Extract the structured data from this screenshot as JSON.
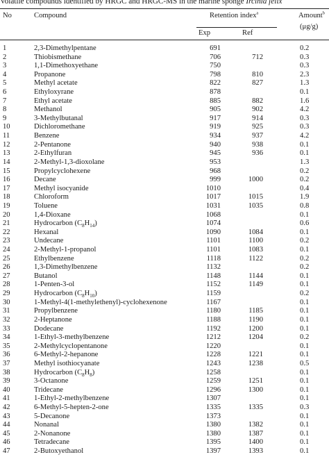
{
  "caption": {
    "text": "Volatile compounds identified by HRGC and HRGC-MS in the marine sponge ",
    "species": "Ircinia felix"
  },
  "headers": {
    "no": "No",
    "compound": "Compound",
    "retention_index": "Retention index",
    "retention_note": "a",
    "exp": "Exp",
    "ref": "Ref",
    "amount": "Amount",
    "amount_note": "b",
    "amount_unit": "(μg/g)"
  },
  "rows": [
    {
      "no": "1",
      "compound": "2,3-Dimethylpentane",
      "exp": "691",
      "ref": "",
      "amount": "0.2"
    },
    {
      "no": "2",
      "compound": "Thiobismethane",
      "exp": "706",
      "ref": "712",
      "amount": "0.3"
    },
    {
      "no": "3",
      "compound": "1,1-Dimethoxyethane",
      "exp": "750",
      "ref": "",
      "amount": "0.3"
    },
    {
      "no": "4",
      "compound": "Propanone",
      "exp": "798",
      "ref": "810",
      "amount": "2.3"
    },
    {
      "no": "5",
      "compound": "Methyl acetate",
      "exp": "822",
      "ref": "827",
      "amount": "1.3"
    },
    {
      "no": "6",
      "compound": "Ethyloxyrane",
      "exp": "878",
      "ref": "",
      "amount": "0.1"
    },
    {
      "no": "7",
      "compound": "Ethyl acetate",
      "exp": "885",
      "ref": "882",
      "amount": "1.6"
    },
    {
      "no": "8",
      "compound": "Methanol",
      "exp": "905",
      "ref": "902",
      "amount": "4.2"
    },
    {
      "no": "9",
      "compound": "3-Methylbutanal",
      "exp": "917",
      "ref": "914",
      "amount": "0.3"
    },
    {
      "no": "10",
      "compound": "Dichloromethane",
      "exp": "919",
      "ref": "925",
      "amount": "0.3"
    },
    {
      "no": "11",
      "compound": "Benzene",
      "exp": "934",
      "ref": "937",
      "amount": "4.2"
    },
    {
      "no": "12",
      "compound": "2-Pentanone",
      "exp": "940",
      "ref": "938",
      "amount": "0.1"
    },
    {
      "no": "13",
      "compound": "2-Ethylfuran",
      "exp": "945",
      "ref": "936",
      "amount": "0.1"
    },
    {
      "no": "14",
      "compound": "2-Methyl-1,3-dioxolane",
      "exp": "953",
      "ref": "",
      "amount": "1.3"
    },
    {
      "no": "15",
      "compound": "Propylcyclohexene",
      "exp": "968",
      "ref": "",
      "amount": "0.2"
    },
    {
      "no": "16",
      "compound": "Decane",
      "exp": "999",
      "ref": "1000",
      "amount": "0.2"
    },
    {
      "no": "17",
      "compound": "Methyl isocyanide",
      "exp": "1010",
      "ref": "",
      "amount": "0.4"
    },
    {
      "no": "18",
      "compound": "Chloroform",
      "exp": "1017",
      "ref": "1015",
      "amount": "1.9"
    },
    {
      "no": "19",
      "compound": "Toluene",
      "exp": "1031",
      "ref": "1035",
      "amount": "0.8"
    },
    {
      "no": "20",
      "compound": "1,4-Dioxane",
      "exp": "1068",
      "ref": "",
      "amount": "0.1"
    },
    {
      "no": "21",
      "compound": "Hydrocarbon (C",
      "sub": "8",
      "compound_tail": "H",
      "sub2": "14",
      "compound_end": ")",
      "exp": "1074",
      "ref": "",
      "amount": "0.6"
    },
    {
      "no": "22",
      "compound": "Hexanal",
      "exp": "1090",
      "ref": "1084",
      "amount": "0.1"
    },
    {
      "no": "23",
      "compound": "Undecane",
      "exp": "1101",
      "ref": "1100",
      "amount": "0.2"
    },
    {
      "no": "24",
      "compound": "2-Methyl-1-propanol",
      "exp": "1101",
      "ref": "1083",
      "amount": "0.1"
    },
    {
      "no": "25",
      "compound": "Ethylbenzene",
      "exp": "1118",
      "ref": "1122",
      "amount": "0.2"
    },
    {
      "no": "26",
      "compound": "1,3-Dimethylbenzene",
      "exp": "1132",
      "ref": "",
      "amount": "0.2"
    },
    {
      "no": "27",
      "compound": "Butanol",
      "exp": "1148",
      "ref": "1144",
      "amount": "0.1"
    },
    {
      "no": "28",
      "compound": "1-Penten-3-ol",
      "exp": "1152",
      "ref": "1149",
      "amount": "0.1"
    },
    {
      "no": "29",
      "compound": "Hydrocarbon (C",
      "sub": "8",
      "compound_tail": "H",
      "sub2": "10",
      "compound_end": ")",
      "exp": "1159",
      "ref": "",
      "amount": "0.2"
    },
    {
      "no": "30",
      "compound": "1-Methyl-4(1-methylethenyl)-cyclohexenone",
      "exp": "1167",
      "ref": "",
      "amount": "0.1"
    },
    {
      "no": "31",
      "compound": "Propylbenzene",
      "exp": "1180",
      "ref": "1185",
      "amount": "0.1"
    },
    {
      "no": "32",
      "compound": "2-Heptanone",
      "exp": "1188",
      "ref": "1190",
      "amount": "0.1"
    },
    {
      "no": "33",
      "compound": "Dodecane",
      "exp": "1192",
      "ref": "1200",
      "amount": "0.1"
    },
    {
      "no": "34",
      "compound": "1-Ethyl-3-methylbenzene",
      "exp": "1212",
      "ref": "1204",
      "amount": "0.2"
    },
    {
      "no": "35",
      "compound": "2-Methylcyclopentanone",
      "exp": "1220",
      "ref": "",
      "amount": "0.1"
    },
    {
      "no": "36",
      "compound": "6-Methyl-2-hepanone",
      "exp": "1228",
      "ref": "1221",
      "amount": "0.1"
    },
    {
      "no": "37",
      "compound": "Methyl isothiocyanate",
      "exp": "1243",
      "ref": "1238",
      "amount": "0.5"
    },
    {
      "no": "38",
      "compound": "Hydrocarbon (C",
      "sub": "8",
      "compound_tail": "H",
      "sub2": "8",
      "compound_end": ")",
      "exp": "1258",
      "ref": "",
      "amount": "0.1"
    },
    {
      "no": "39",
      "compound": "3-Octanone",
      "exp": "1259",
      "ref": "1251",
      "amount": "0.1"
    },
    {
      "no": "40",
      "compound": "Tridecane",
      "exp": "1296",
      "ref": "1300",
      "amount": "0.1"
    },
    {
      "no": "41",
      "compound": "1-Ethyl-2-methylbenzene",
      "exp": "1307",
      "ref": "",
      "amount": "0.1"
    },
    {
      "no": "42",
      "compound": "6-Methyl-5-hepten-2-one",
      "exp": "1335",
      "ref": "1335",
      "amount": "0.3"
    },
    {
      "no": "43",
      "compound": "5-Decanone",
      "exp": "1373",
      "ref": "",
      "amount": "0.1"
    },
    {
      "no": "44",
      "compound": "Nonanal",
      "exp": "1380",
      "ref": "1382",
      "amount": "0.1"
    },
    {
      "no": "45",
      "compound": "2-Nonanone",
      "exp": "1380",
      "ref": "1387",
      "amount": "0.1"
    },
    {
      "no": "46",
      "compound": "Tetradecane",
      "exp": "1395",
      "ref": "1400",
      "amount": "0.1"
    },
    {
      "no": "47",
      "compound": "2-Butoxyethanol",
      "exp": "1397",
      "ref": "1393",
      "amount": "0.1"
    }
  ]
}
